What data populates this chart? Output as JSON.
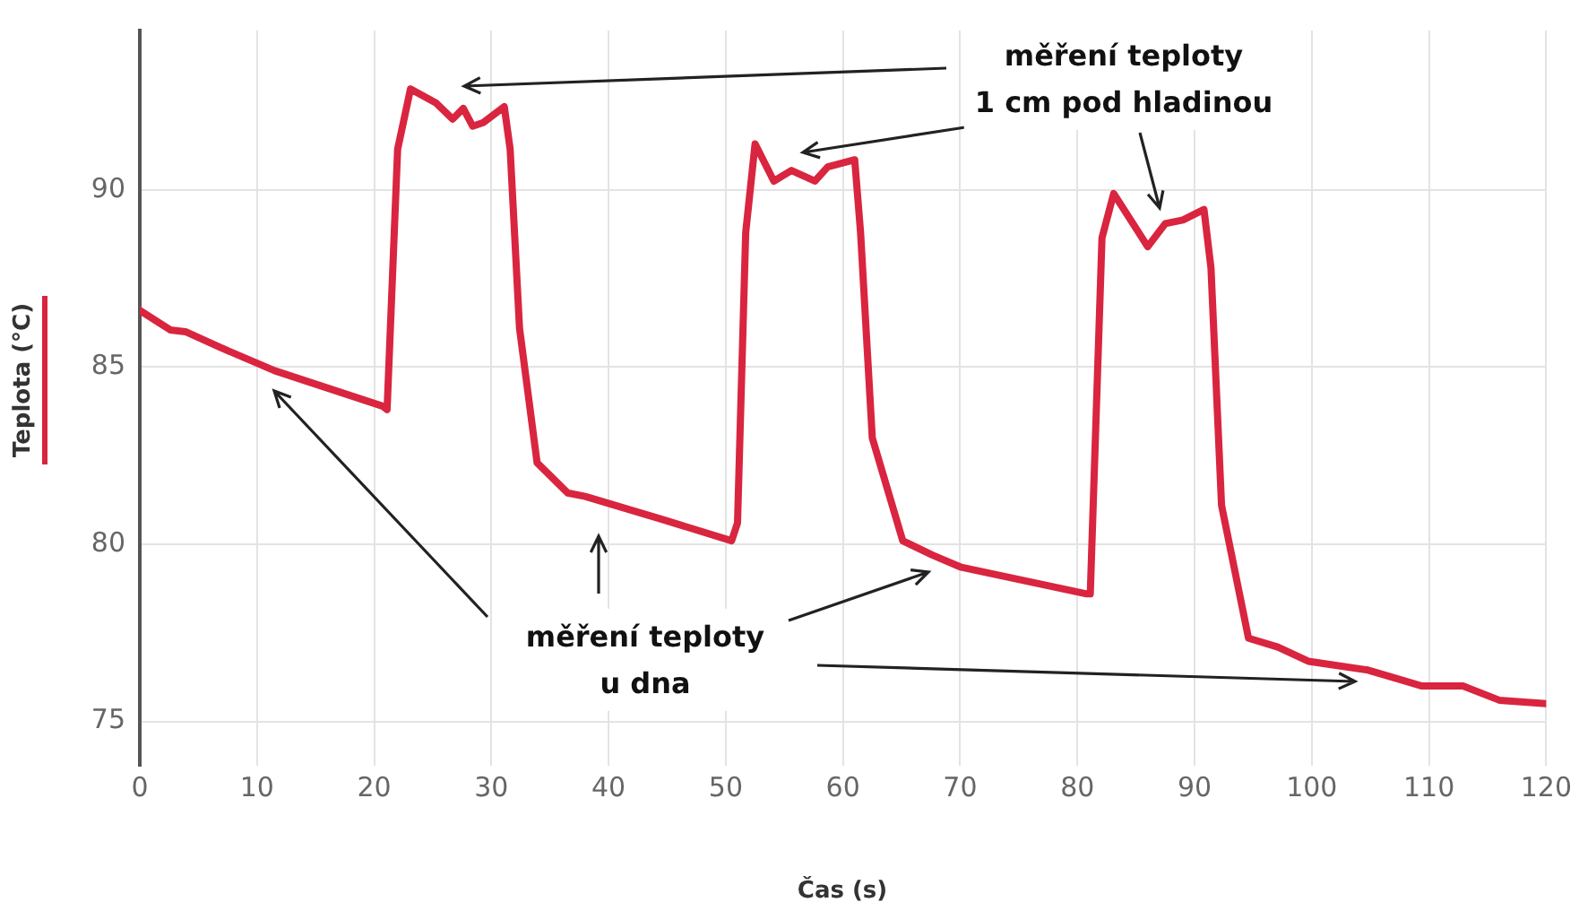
{
  "chart_data": {
    "type": "line",
    "xlabel": "Čas (s)",
    "ylabel": "Teplota (°C)",
    "xlim": [
      0,
      120
    ],
    "xticks": [
      0,
      10,
      20,
      30,
      40,
      50,
      60,
      70,
      80,
      90,
      100,
      110,
      120
    ],
    "ylim": [
      73.75,
      94.5
    ],
    "yticks": [
      75,
      80,
      85,
      90
    ],
    "grid": true,
    "marker": "none",
    "line_style": "solid",
    "annotations": [
      "měření teploty\n1 cm pod hladinou",
      "měření teploty\nu dna"
    ],
    "series": [
      {
        "color": "#d9253f",
        "x": [
          0,
          2.6,
          3.9,
          6.9,
          11.5,
          20.7,
          21.1,
          22,
          23.1,
          25.3,
          26.7,
          27.6,
          28.4,
          29.3,
          31.1,
          31.6,
          32.4,
          33.9,
          36.5,
          38,
          44.6,
          50.5,
          51,
          51.7,
          52.5,
          54.1,
          55.6,
          57.6,
          58.7,
          61,
          61.5,
          62.5,
          65.1,
          67.6,
          70.1,
          80.8,
          81.1,
          82.1,
          83.1,
          86,
          87.5,
          89,
          90.8,
          91.4,
          92.3,
          94.6,
          97.1,
          99.7,
          104.8,
          109.4,
          112.9,
          116,
          120
        ],
        "values": [
          86.6,
          86.05,
          86,
          85.55,
          84.9,
          83.9,
          83.8,
          91.15,
          92.85,
          92.45,
          92,
          92.3,
          91.8,
          91.9,
          92.35,
          91.15,
          86.1,
          82.3,
          81.45,
          81.35,
          80.7,
          80.1,
          80.6,
          88.8,
          91.3,
          90.25,
          90.55,
          90.25,
          90.65,
          90.85,
          88.8,
          83,
          80.1,
          79.7,
          79.35,
          78.6,
          78.6,
          88.65,
          89.9,
          88.4,
          89.05,
          89.15,
          89.45,
          87.8,
          81.1,
          77.35,
          77.1,
          76.7,
          76.45,
          76,
          76,
          75.6,
          75.5
        ]
      }
    ]
  }
}
